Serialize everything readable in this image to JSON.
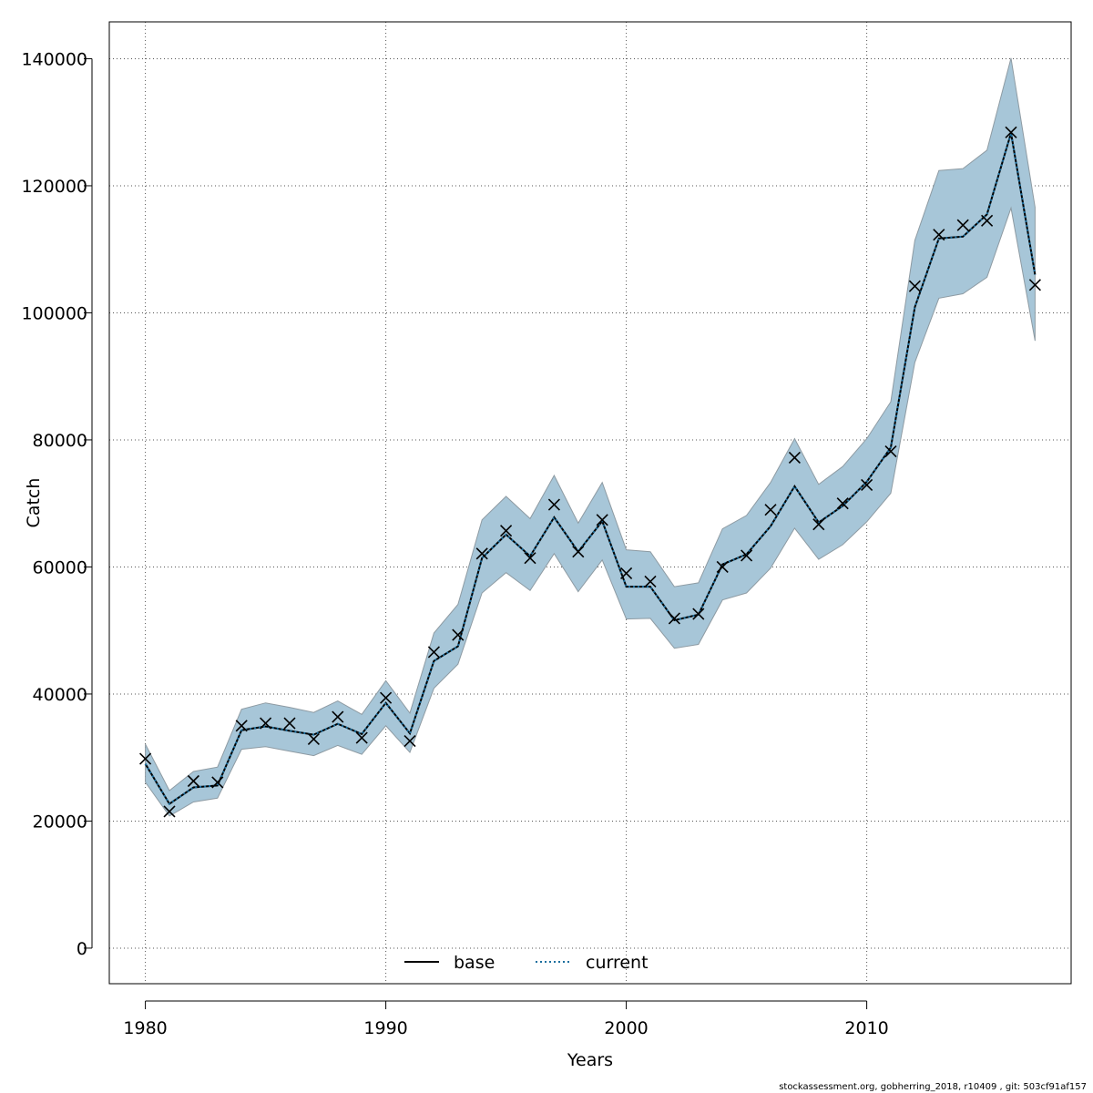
{
  "chart_data": {
    "type": "line",
    "xlabel": "Years",
    "ylabel": "Catch",
    "xlim": [
      1978.5,
      2018.5
    ],
    "ylim": [
      -5600,
      145800
    ],
    "x_ticks": [
      1980,
      1990,
      2000,
      2010
    ],
    "y_ticks": [
      0,
      20000,
      40000,
      60000,
      80000,
      100000,
      120000,
      140000
    ],
    "grid": true,
    "legend_position": "bottom-center",
    "colors": {
      "band": "#a7c6d8",
      "band_edge": "#8e9ba3",
      "base": "#000000",
      "current": "#1a6e9e",
      "observed": "#000000"
    },
    "x": [
      1980,
      1981,
      1982,
      1983,
      1984,
      1985,
      1986,
      1987,
      1988,
      1989,
      1990,
      1991,
      1992,
      1993,
      1994,
      1995,
      1996,
      1997,
      1998,
      1999,
      2000,
      2001,
      2002,
      2003,
      2004,
      2005,
      2006,
      2007,
      2008,
      2009,
      2010,
      2011,
      2012,
      2013,
      2014,
      2015,
      2016,
      2017
    ],
    "series": [
      {
        "name": "base",
        "style": "solid",
        "values": [
          29000,
          22700,
          25300,
          25600,
          34300,
          34900,
          34200,
          33600,
          35300,
          33700,
          38600,
          33800,
          45200,
          47500,
          61400,
          65100,
          61700,
          67800,
          62400,
          67200,
          56900,
          56900,
          51600,
          52500,
          60400,
          62000,
          66400,
          72700,
          67000,
          69600,
          73400,
          78800,
          100900,
          111700,
          112000,
          115500,
          128300,
          106000
        ]
      },
      {
        "name": "current",
        "style": "dotted",
        "values": [
          29000,
          22700,
          25300,
          25600,
          34300,
          34900,
          34200,
          33600,
          35300,
          33700,
          38600,
          33800,
          45200,
          47500,
          61400,
          65100,
          61700,
          67800,
          62400,
          67200,
          56900,
          56900,
          51600,
          52500,
          60400,
          62000,
          66400,
          72700,
          67000,
          69600,
          73400,
          78800,
          100900,
          111700,
          112000,
          115500,
          128300,
          106000
        ]
      }
    ],
    "band_upper": [
      32100,
      24800,
      27800,
      28500,
      37600,
      38600,
      37900,
      37100,
      38900,
      36800,
      42100,
      37000,
      49600,
      54100,
      67400,
      71100,
      67600,
      74400,
      66900,
      73300,
      62700,
      62400,
      56900,
      57500,
      66000,
      68100,
      73300,
      80200,
      73000,
      75800,
      80200,
      86000,
      111400,
      122400,
      122700,
      125600,
      140100,
      116600
    ],
    "band_lower": [
      26100,
      20800,
      23000,
      23600,
      31300,
      31700,
      31000,
      30300,
      31900,
      30500,
      35000,
      30800,
      40900,
      44700,
      55900,
      59100,
      56300,
      62100,
      56100,
      61100,
      51800,
      51900,
      47200,
      47800,
      54800,
      55900,
      59800,
      66100,
      61200,
      63500,
      67100,
      71600,
      92200,
      102300,
      103000,
      105600,
      116500,
      95600
    ],
    "observed": [
      29800,
      21500,
      26300,
      26100,
      35000,
      35400,
      35400,
      32900,
      36400,
      33100,
      39400,
      32600,
      46600,
      49300,
      62100,
      65700,
      61400,
      69800,
      62400,
      67400,
      59000,
      57700,
      51900,
      52600,
      60000,
      61800,
      69000,
      77200,
      66700,
      70000,
      72900,
      78200,
      104200,
      112300,
      113800,
      114500,
      128400,
      104400
    ]
  },
  "footer": "stockassessment.org, gobherring_2018, r10409 , git: 503cf91af157"
}
